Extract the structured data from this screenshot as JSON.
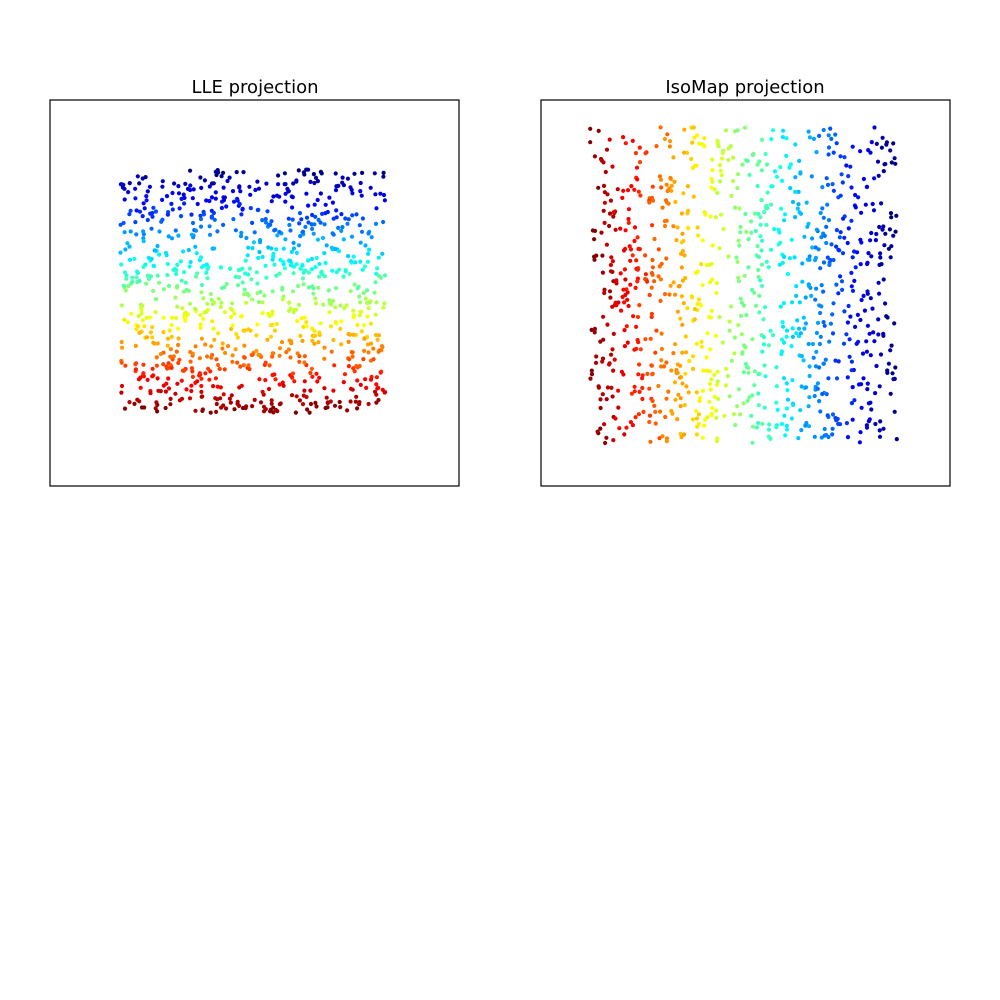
{
  "chart_data": [
    {
      "type": "scatter",
      "title": "LLE projection",
      "xlabel": "",
      "ylabel": "",
      "show_ticks": false,
      "grid": false,
      "colormap": "jet",
      "colormap_stops": [
        "#00007f",
        "#0000ff",
        "#007fff",
        "#00ffff",
        "#7fff7f",
        "#ffff00",
        "#ff7f00",
        "#ff0000",
        "#7f0000"
      ],
      "xlim": [
        0,
        1
      ],
      "ylim": [
        0,
        1
      ],
      "point_region": {
        "x": [
          0.17,
          0.82
        ],
        "y": [
          0.19,
          0.82
        ]
      },
      "color_gradient": "vertical",
      "color_order": "top-dark-blue-to-bottom-dark-red",
      "series": [
        {
          "values": 1000
        }
      ]
    },
    {
      "type": "scatter",
      "title": "IsoMap projection",
      "xlabel": "",
      "ylabel": "",
      "show_ticks": false,
      "grid": false,
      "colormap": "jet",
      "colormap_stops": [
        "#00007f",
        "#0000ff",
        "#007fff",
        "#00ffff",
        "#7fff7f",
        "#ffff00",
        "#ff7f00",
        "#ff0000",
        "#7f0000"
      ],
      "xlim": [
        0,
        1
      ],
      "ylim": [
        0,
        1
      ],
      "point_region": {
        "x": [
          0.12,
          0.87
        ],
        "y": [
          0.11,
          0.93
        ]
      },
      "color_gradient": "horizontal",
      "color_order": "left-dark-red-to-right-dark-blue",
      "series": [
        {
          "values": 1000
        }
      ]
    }
  ]
}
